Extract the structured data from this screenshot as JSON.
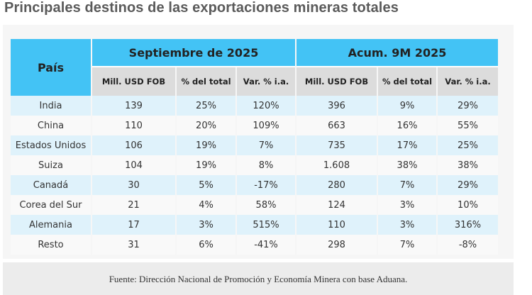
{
  "title": "Principales destinos de las exportaciones mineras totales",
  "chart_data": {
    "type": "table",
    "title": "Principales destinos de las exportaciones mineras totales",
    "row_header": "País",
    "groups": [
      {
        "label": "Septiembre de 2025",
        "columns": [
          "Mill. USD FOB",
          "% del total",
          "Var. % i.a."
        ]
      },
      {
        "label": "Acum. 9M 2025",
        "columns": [
          "Mill. USD FOB",
          "% del total",
          "Var. % i.a."
        ]
      }
    ],
    "rows": [
      {
        "country": "India",
        "values": [
          "139",
          "25%",
          "120%",
          "396",
          "9%",
          "29%"
        ]
      },
      {
        "country": "China",
        "values": [
          "110",
          "20%",
          "109%",
          "663",
          "16%",
          "55%"
        ]
      },
      {
        "country": "Estados Unidos",
        "values": [
          "106",
          "19%",
          "7%",
          "735",
          "17%",
          "25%"
        ]
      },
      {
        "country": "Suiza",
        "values": [
          "104",
          "19%",
          "8%",
          "1.608",
          "38%",
          "38%"
        ]
      },
      {
        "country": "Canadá",
        "values": [
          "30",
          "5%",
          "-17%",
          "280",
          "7%",
          "29%"
        ]
      },
      {
        "country": "Corea del Sur",
        "values": [
          "21",
          "4%",
          "58%",
          "124",
          "3%",
          "10%"
        ]
      },
      {
        "country": "Alemania",
        "values": [
          "17",
          "3%",
          "515%",
          "110",
          "3%",
          "316%"
        ]
      },
      {
        "country": "Resto",
        "values": [
          "31",
          "6%",
          "-41%",
          "298",
          "7%",
          "-8%"
        ]
      }
    ],
    "source": "Fuente: Dirección Nacional de Promoción y Economía Minera con base Aduana."
  },
  "colors": {
    "header": "#43c3f5",
    "subheader": "#dcdcdc",
    "row_alt": "#dff2fb",
    "row": "#f9f9f9"
  }
}
